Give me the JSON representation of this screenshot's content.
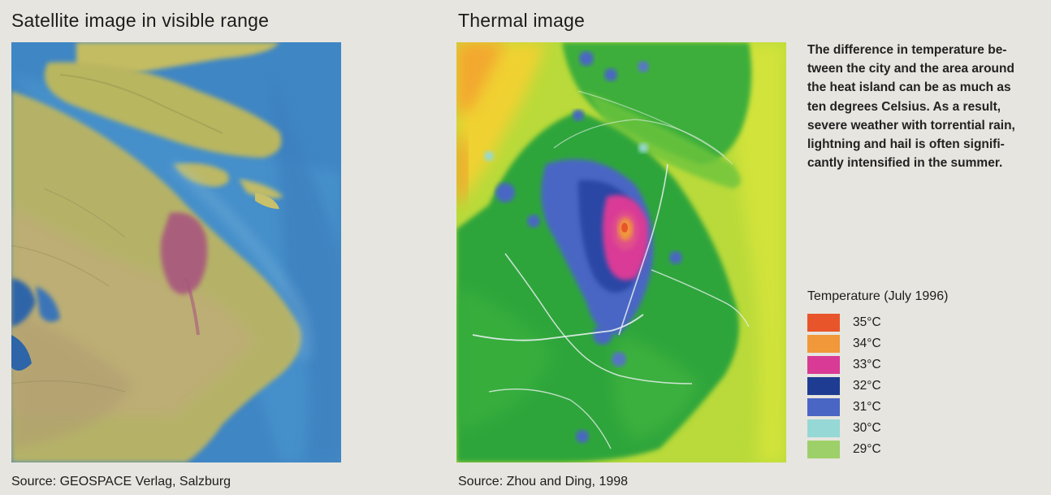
{
  "left_panel": {
    "title": "Satellite image in visible range",
    "source": "Source: GEOSPACE Verlag, Salzburg"
  },
  "right_panel": {
    "title": "Thermal image",
    "source": "Source: Zhou and Ding, 1998"
  },
  "description": "The difference in temperature be-\ntween the city and the area around\nthe heat island can be as much as\nten degrees Celsius. As a result,\nsevere weather with torrential rain,\nlightning and hail is often signifi-\ncantly intensified in the summer.",
  "legend": {
    "title": "Temperature (July 1996)",
    "items": [
      {
        "label": "35°C",
        "color": "#e8552a"
      },
      {
        "label": "34°C",
        "color": "#f0983a"
      },
      {
        "label": "33°C",
        "color": "#d93a96"
      },
      {
        "label": "32°C",
        "color": "#1e3c92"
      },
      {
        "label": "31°C",
        "color": "#4a66c4"
      },
      {
        "label": "30°C",
        "color": "#96d8d6"
      },
      {
        "label": "29°C",
        "color": "#9ed069"
      }
    ]
  },
  "colors": {
    "background": "#e7e5df",
    "water": "#3f88c6",
    "land": "#b8b768",
    "urban": "#a7587f",
    "thermal_cool": "#2ea83a",
    "thermal_warm_edge": "#c8e030"
  }
}
